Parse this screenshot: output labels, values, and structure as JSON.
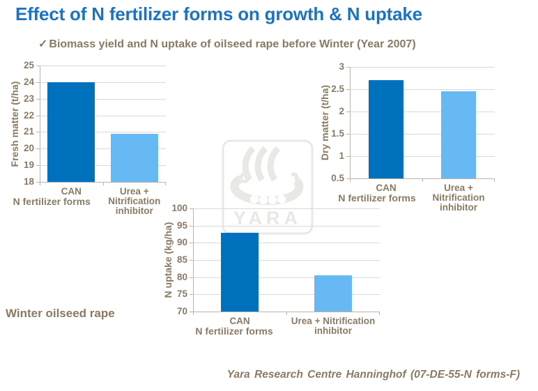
{
  "slide": {
    "title": "Effect of N fertilizer forms on growth & N uptake",
    "bullet": {
      "check": "✓",
      "text": "Biomass yield and N uptake of oilseed rape before Winter (Year 2007)"
    },
    "note_left": "Winter oilseed rape",
    "credit": "Yara Research Centre Hanninghof (07-DE-55-N forms-F)",
    "watermark_text": "YARA"
  },
  "colors": {
    "title_blue": "#1a74c2",
    "text_brown": "#8a7a63",
    "bar_dark_blue": "#0072bd",
    "bar_light_blue": "#66b9f2",
    "gridline_gray": "#d9d9d9",
    "axis_gray": "#bcb4a8",
    "watermark_gray": "#e9e8e5"
  },
  "chart_data": [
    {
      "id": "fresh-matter",
      "type": "bar",
      "title": "",
      "ylabel": "Fresh matter (t/ha)",
      "xlabel": "N fertilizer forms",
      "categories": [
        "CAN",
        "Urea +\nNitrification\ninhibitor"
      ],
      "values": [
        24,
        20.9
      ],
      "ylim": [
        18,
        25
      ],
      "ytick_step": 1,
      "grid": true,
      "legend": "none",
      "bar_colors": [
        "#0072bd",
        "#66b9f2"
      ]
    },
    {
      "id": "dry-matter",
      "type": "bar",
      "title": "",
      "ylabel": "Dry matter (t/ha)",
      "xlabel": "N fertilizer forms",
      "categories": [
        "CAN",
        "Urea +\nNitrification\ninhibitor"
      ],
      "values": [
        2.7,
        2.45
      ],
      "ylim": [
        0.5,
        3
      ],
      "ytick_step": 0.5,
      "grid": true,
      "legend": "none",
      "bar_colors": [
        "#0072bd",
        "#66b9f2"
      ]
    },
    {
      "id": "n-uptake",
      "type": "bar",
      "title": "",
      "ylabel": "N uptake (kg/ha)",
      "xlabel": "N fertilizer forms",
      "categories": [
        "CAN",
        "Urea + Nitrification\ninhibitor"
      ],
      "values": [
        93,
        80.5
      ],
      "ylim": [
        70,
        100
      ],
      "ytick_step": 5,
      "grid": true,
      "legend": "none",
      "bar_colors": [
        "#0072bd",
        "#66b9f2"
      ]
    }
  ]
}
